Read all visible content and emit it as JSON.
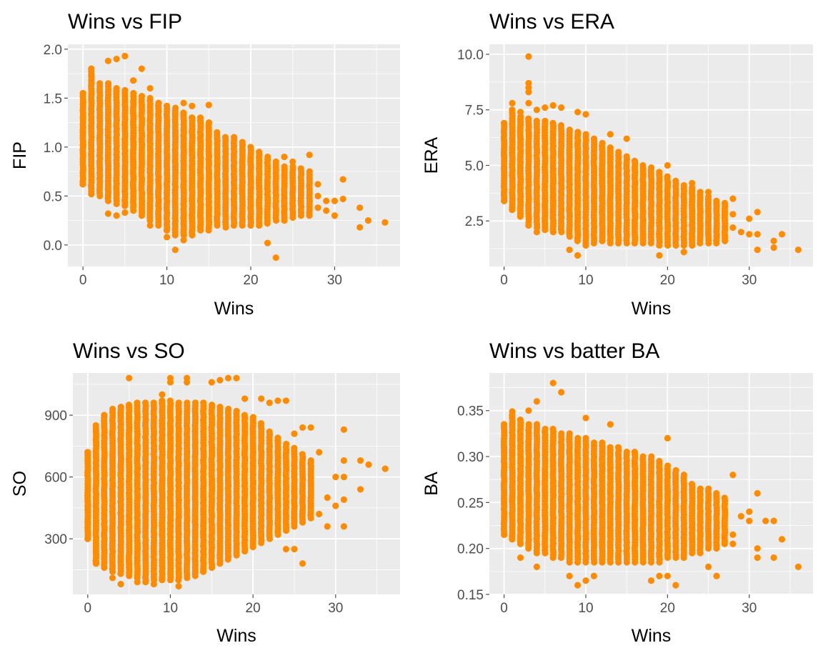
{
  "figure": {
    "point_color": "#ff8c00",
    "panel_background": "#ebebeb",
    "grid_color": "#ffffff"
  },
  "chart_data": [
    {
      "type": "scatter",
      "title": "Wins vs FIP",
      "xlabel": "Wins",
      "ylabel": "FIP",
      "xlim": [
        -1.8,
        37.8
      ],
      "ylim": [
        -0.22,
        2.05
      ],
      "xticks": [
        0,
        10,
        20,
        30
      ],
      "yticks": [
        0.0,
        0.5,
        1.0,
        1.5,
        2.0
      ],
      "xtick_labels": [
        "0",
        "10",
        "20",
        "30"
      ],
      "ytick_labels": [
        "0.0",
        "0.5",
        "1.0",
        "1.5",
        "2.0"
      ],
      "grid": true,
      "columns": [
        [
          0,
          0.62,
          1.55
        ],
        [
          1,
          0.52,
          1.8
        ],
        [
          2,
          0.5,
          1.62
        ],
        [
          3,
          0.45,
          1.65
        ],
        [
          4,
          0.42,
          1.6
        ],
        [
          5,
          0.4,
          1.58
        ],
        [
          6,
          0.35,
          1.55
        ],
        [
          7,
          0.3,
          1.52
        ],
        [
          8,
          0.25,
          1.5
        ],
        [
          9,
          0.2,
          1.45
        ],
        [
          10,
          0.15,
          1.42
        ],
        [
          11,
          0.1,
          1.4
        ],
        [
          12,
          0.1,
          1.35
        ],
        [
          13,
          0.1,
          1.3
        ],
        [
          14,
          0.15,
          1.3
        ],
        [
          15,
          0.15,
          1.25
        ],
        [
          16,
          0.2,
          1.15
        ],
        [
          17,
          0.18,
          1.1
        ],
        [
          18,
          0.2,
          1.1
        ],
        [
          19,
          0.2,
          1.05
        ],
        [
          20,
          0.2,
          1.0
        ],
        [
          21,
          0.2,
          0.95
        ],
        [
          22,
          0.22,
          0.9
        ],
        [
          23,
          0.25,
          0.85
        ],
        [
          24,
          0.25,
          0.8
        ],
        [
          25,
          0.28,
          0.8
        ],
        [
          26,
          0.3,
          0.78
        ],
        [
          27,
          0.3,
          0.75
        ]
      ],
      "points": [
        [
          0,
          0.62
        ],
        [
          0,
          0.75
        ],
        [
          0,
          1.02
        ],
        [
          0,
          1.15
        ],
        [
          0,
          1.3
        ],
        [
          0,
          1.55
        ],
        [
          1,
          0.52
        ],
        [
          1,
          1.72
        ],
        [
          1,
          1.8
        ],
        [
          2,
          1.65
        ],
        [
          3,
          1.88
        ],
        [
          3,
          0.32
        ],
        [
          4,
          1.9
        ],
        [
          4,
          0.3
        ],
        [
          5,
          1.93
        ],
        [
          5,
          0.33
        ],
        [
          6,
          1.68
        ],
        [
          7,
          1.8
        ],
        [
          8,
          1.6
        ],
        [
          8,
          0.2
        ],
        [
          10,
          0.08
        ],
        [
          10,
          0.15
        ],
        [
          11,
          -0.05
        ],
        [
          12,
          0.05
        ],
        [
          12,
          1.45
        ],
        [
          13,
          1.42
        ],
        [
          15,
          1.43
        ],
        [
          21,
          0.2
        ],
        [
          22,
          0.02
        ],
        [
          23,
          -0.13
        ],
        [
          24,
          0.9
        ],
        [
          25,
          0.85
        ],
        [
          27,
          0.92
        ],
        [
          28,
          0.62
        ],
        [
          28,
          0.5
        ],
        [
          28,
          0.38
        ],
        [
          29,
          0.45
        ],
        [
          29,
          0.35
        ],
        [
          30,
          0.45
        ],
        [
          30,
          0.3
        ],
        [
          31,
          0.67
        ],
        [
          31,
          0.47
        ],
        [
          33,
          0.38
        ],
        [
          33,
          0.18
        ],
        [
          34,
          0.25
        ],
        [
          36,
          0.23
        ]
      ]
    },
    {
      "type": "scatter",
      "title": "Wins vs ERA",
      "xlabel": "Wins",
      "ylabel": "ERA",
      "xlim": [
        -1.8,
        37.8
      ],
      "ylim": [
        0.45,
        10.45
      ],
      "xticks": [
        0,
        10,
        20,
        30
      ],
      "yticks": [
        2.5,
        5.0,
        7.5,
        10.0
      ],
      "xtick_labels": [
        "0",
        "10",
        "20",
        "30"
      ],
      "ytick_labels": [
        "2.5",
        "5.0",
        "7.5",
        "10.0"
      ],
      "grid": true,
      "columns": [
        [
          0,
          3.4,
          6.9
        ],
        [
          1,
          3.0,
          7.5
        ],
        [
          2,
          2.7,
          7.2
        ],
        [
          3,
          2.3,
          7.1
        ],
        [
          4,
          2.2,
          7.0
        ],
        [
          5,
          2.1,
          7.0
        ],
        [
          6,
          2.0,
          6.9
        ],
        [
          7,
          2.0,
          6.8
        ],
        [
          8,
          1.8,
          6.6
        ],
        [
          9,
          1.6,
          6.5
        ],
        [
          10,
          1.5,
          6.4
        ],
        [
          11,
          1.5,
          6.2
        ],
        [
          12,
          1.6,
          6.0
        ],
        [
          13,
          1.5,
          5.8
        ],
        [
          14,
          1.5,
          5.6
        ],
        [
          15,
          1.5,
          5.4
        ],
        [
          16,
          1.5,
          5.2
        ],
        [
          17,
          1.5,
          5.0
        ],
        [
          18,
          1.5,
          4.9
        ],
        [
          19,
          1.4,
          4.7
        ],
        [
          20,
          1.4,
          4.5
        ],
        [
          21,
          1.4,
          4.3
        ],
        [
          22,
          1.4,
          4.1
        ],
        [
          23,
          1.4,
          4.0
        ],
        [
          24,
          1.5,
          3.8
        ],
        [
          25,
          1.5,
          3.6
        ],
        [
          26,
          1.5,
          3.4
        ],
        [
          27,
          1.6,
          3.3
        ]
      ],
      "points": [
        [
          0,
          3.4
        ],
        [
          0,
          3.65
        ],
        [
          0,
          4.85
        ],
        [
          0,
          5.45
        ],
        [
          0,
          6.9
        ],
        [
          1,
          3.1
        ],
        [
          1,
          7.8
        ],
        [
          2,
          2.8
        ],
        [
          2,
          7.4
        ],
        [
          3,
          9.9
        ],
        [
          3,
          8.7
        ],
        [
          3,
          8.5
        ],
        [
          3,
          8.3
        ],
        [
          3,
          7.8
        ],
        [
          4,
          2.0
        ],
        [
          4,
          7.5
        ],
        [
          5,
          7.6
        ],
        [
          6,
          7.7
        ],
        [
          7,
          7.6
        ],
        [
          8,
          1.2
        ],
        [
          9,
          0.95
        ],
        [
          9,
          7.4
        ],
        [
          10,
          7.3
        ],
        [
          10,
          1.4
        ],
        [
          13,
          6.4
        ],
        [
          15,
          6.2
        ],
        [
          19,
          0.95
        ],
        [
          20,
          5.0
        ],
        [
          22,
          1.1
        ],
        [
          23,
          4.2
        ],
        [
          25,
          3.8
        ],
        [
          26,
          1.8
        ],
        [
          28,
          3.5
        ],
        [
          28,
          2.8
        ],
        [
          28,
          2.2
        ],
        [
          29,
          2.0
        ],
        [
          30,
          1.9
        ],
        [
          30,
          2.6
        ],
        [
          31,
          2.9
        ],
        [
          31,
          1.9
        ],
        [
          31,
          1.2
        ],
        [
          33,
          1.6
        ],
        [
          33,
          1.3
        ],
        [
          34,
          1.9
        ],
        [
          36,
          1.2
        ]
      ]
    },
    {
      "type": "scatter",
      "title": "Wins vs SO",
      "xlabel": "Wins",
      "ylabel": "SO",
      "xlim": [
        -1.8,
        37.8
      ],
      "ylim": [
        30,
        1105
      ],
      "xticks": [
        0,
        10,
        20,
        30
      ],
      "yticks": [
        300,
        600,
        900
      ],
      "xtick_labels": [
        "0",
        "10",
        "20",
        "30"
      ],
      "ytick_labels": [
        "300",
        "600",
        "900"
      ],
      "grid": true,
      "columns": [
        [
          0,
          300,
          720
        ],
        [
          1,
          180,
          850
        ],
        [
          2,
          160,
          900
        ],
        [
          3,
          140,
          930
        ],
        [
          4,
          130,
          940
        ],
        [
          5,
          120,
          950
        ],
        [
          6,
          110,
          960
        ],
        [
          7,
          100,
          960
        ],
        [
          8,
          100,
          960
        ],
        [
          9,
          100,
          970
        ],
        [
          10,
          100,
          970
        ],
        [
          11,
          100,
          960
        ],
        [
          12,
          110,
          960
        ],
        [
          13,
          120,
          960
        ],
        [
          14,
          140,
          960
        ],
        [
          15,
          160,
          950
        ],
        [
          16,
          180,
          940
        ],
        [
          17,
          200,
          930
        ],
        [
          18,
          220,
          920
        ],
        [
          19,
          240,
          900
        ],
        [
          20,
          260,
          890
        ],
        [
          21,
          280,
          860
        ],
        [
          22,
          300,
          820
        ],
        [
          23,
          320,
          790
        ],
        [
          24,
          340,
          760
        ],
        [
          25,
          360,
          740
        ],
        [
          26,
          380,
          710
        ],
        [
          27,
          400,
          680
        ]
      ],
      "points": [
        [
          0,
          300
        ],
        [
          0,
          380
        ],
        [
          0,
          440
        ],
        [
          0,
          460
        ],
        [
          0,
          680
        ],
        [
          0,
          720
        ],
        [
          1,
          180
        ],
        [
          1,
          190
        ],
        [
          2,
          900
        ],
        [
          3,
          110
        ],
        [
          4,
          80
        ],
        [
          5,
          1080
        ],
        [
          5,
          940
        ],
        [
          6,
          90
        ],
        [
          7,
          90
        ],
        [
          8,
          80
        ],
        [
          9,
          1000
        ],
        [
          10,
          1060
        ],
        [
          10,
          1080
        ],
        [
          11,
          70
        ],
        [
          12,
          1060
        ],
        [
          12,
          1080
        ],
        [
          15,
          1060
        ],
        [
          16,
          1070
        ],
        [
          17,
          1080
        ],
        [
          18,
          1080
        ],
        [
          19,
          980
        ],
        [
          21,
          980
        ],
        [
          22,
          960
        ],
        [
          23,
          970
        ],
        [
          24,
          970
        ],
        [
          24,
          250
        ],
        [
          25,
          810
        ],
        [
          25,
          250
        ],
        [
          26,
          840
        ],
        [
          26,
          180
        ],
        [
          27,
          840
        ],
        [
          27,
          500
        ],
        [
          28,
          720
        ],
        [
          28,
          420
        ],
        [
          29,
          500
        ],
        [
          29,
          360
        ],
        [
          30,
          600
        ],
        [
          30,
          460
        ],
        [
          31,
          830
        ],
        [
          31,
          680
        ],
        [
          31,
          600
        ],
        [
          31,
          490
        ],
        [
          31,
          360
        ],
        [
          33,
          680
        ],
        [
          33,
          540
        ],
        [
          34,
          660
        ],
        [
          36,
          640
        ]
      ]
    },
    {
      "type": "scatter",
      "title": "Wins vs batter BA",
      "xlabel": "Wins",
      "ylabel": "BA",
      "xlim": [
        -1.8,
        37.8
      ],
      "ylim": [
        0.15,
        0.391
      ],
      "xticks": [
        0,
        10,
        20,
        30
      ],
      "yticks": [
        0.15,
        0.2,
        0.25,
        0.3,
        0.35
      ],
      "xtick_labels": [
        "0",
        "10",
        "20",
        "30"
      ],
      "ytick_labels": [
        "0.15",
        "0.20",
        "0.25",
        "0.30",
        "0.35"
      ],
      "grid": true,
      "columns": [
        [
          0,
          0.215,
          0.335
        ],
        [
          1,
          0.21,
          0.345
        ],
        [
          2,
          0.205,
          0.34
        ],
        [
          3,
          0.2,
          0.335
        ],
        [
          4,
          0.195,
          0.335
        ],
        [
          5,
          0.195,
          0.33
        ],
        [
          6,
          0.19,
          0.33
        ],
        [
          7,
          0.19,
          0.325
        ],
        [
          8,
          0.185,
          0.325
        ],
        [
          9,
          0.185,
          0.32
        ],
        [
          10,
          0.185,
          0.32
        ],
        [
          11,
          0.185,
          0.315
        ],
        [
          12,
          0.185,
          0.315
        ],
        [
          13,
          0.185,
          0.31
        ],
        [
          14,
          0.185,
          0.31
        ],
        [
          15,
          0.185,
          0.305
        ],
        [
          16,
          0.185,
          0.305
        ],
        [
          17,
          0.185,
          0.3
        ],
        [
          18,
          0.185,
          0.3
        ],
        [
          19,
          0.185,
          0.295
        ],
        [
          20,
          0.19,
          0.29
        ],
        [
          21,
          0.19,
          0.285
        ],
        [
          22,
          0.19,
          0.28
        ],
        [
          23,
          0.195,
          0.27
        ],
        [
          24,
          0.195,
          0.265
        ],
        [
          25,
          0.2,
          0.265
        ],
        [
          26,
          0.2,
          0.26
        ],
        [
          27,
          0.205,
          0.255
        ]
      ],
      "points": [
        [
          0,
          0.215
        ],
        [
          0,
          0.25
        ],
        [
          0,
          0.285
        ],
        [
          0,
          0.31
        ],
        [
          0,
          0.335
        ],
        [
          1,
          0.349
        ],
        [
          2,
          0.19
        ],
        [
          3,
          0.35
        ],
        [
          4,
          0.36
        ],
        [
          4,
          0.18
        ],
        [
          6,
          0.38
        ],
        [
          7,
          0.37
        ],
        [
          8,
          0.17
        ],
        [
          9,
          0.16
        ],
        [
          10,
          0.165
        ],
        [
          10,
          0.342
        ],
        [
          11,
          0.17
        ],
        [
          13,
          0.335
        ],
        [
          18,
          0.165
        ],
        [
          19,
          0.17
        ],
        [
          20,
          0.32
        ],
        [
          20,
          0.17
        ],
        [
          21,
          0.16
        ],
        [
          25,
          0.18
        ],
        [
          26,
          0.17
        ],
        [
          28,
          0.28
        ],
        [
          28,
          0.215
        ],
        [
          28,
          0.205
        ],
        [
          29,
          0.235
        ],
        [
          30,
          0.24
        ],
        [
          30,
          0.23
        ],
        [
          31,
          0.26
        ],
        [
          31,
          0.2
        ],
        [
          31,
          0.19
        ],
        [
          32,
          0.23
        ],
        [
          33,
          0.23
        ],
        [
          33,
          0.19
        ],
        [
          34,
          0.21
        ],
        [
          36,
          0.18
        ]
      ]
    }
  ]
}
